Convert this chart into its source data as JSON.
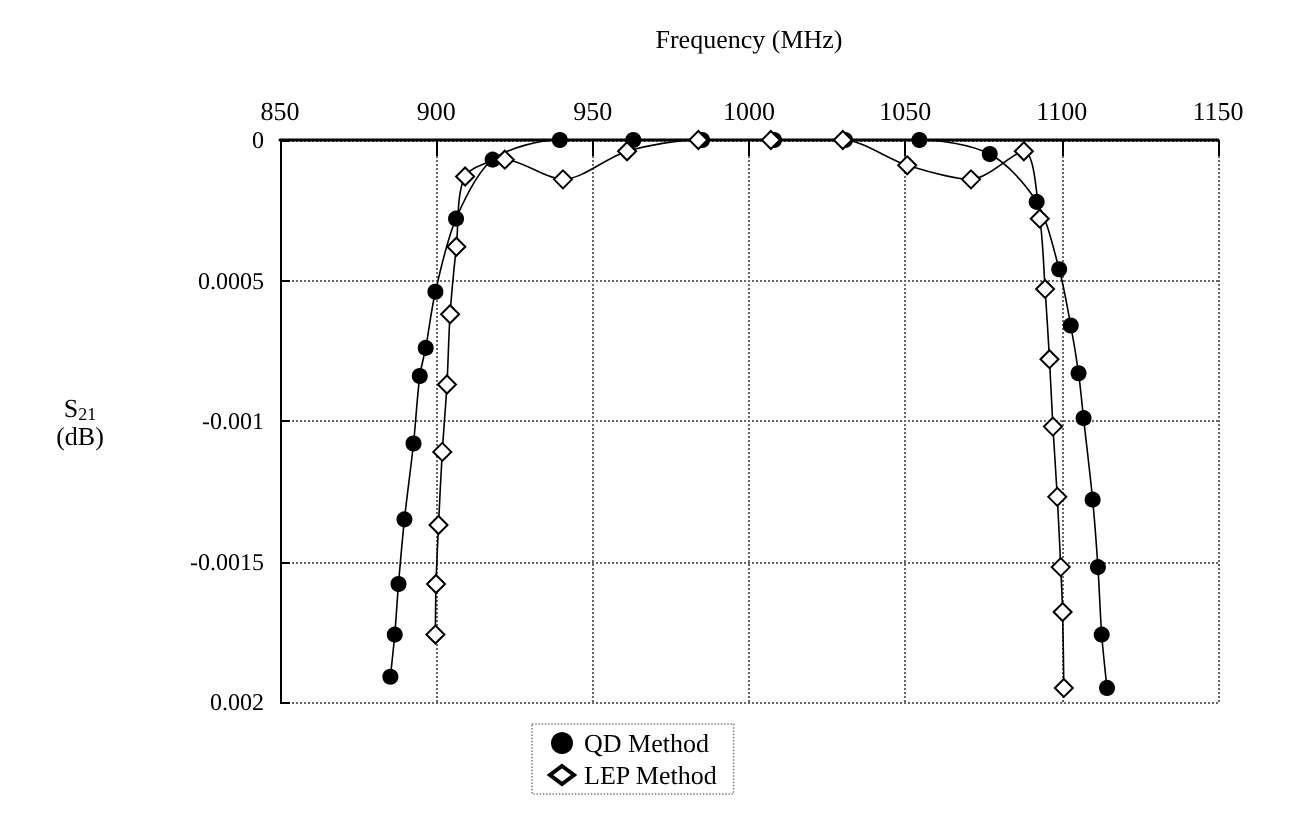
{
  "chart_data": {
    "type": "line",
    "xlabel": "Frequency (MHz)",
    "ylabel": "S$_{21}$ (dB)",
    "xlim": [
      850,
      1150
    ],
    "xticks": [
      850,
      900,
      950,
      1000,
      1050,
      1100,
      1150
    ],
    "ylim": [
      -0.002,
      0
    ],
    "yticks": [
      {
        "value": 0,
        "label": "0"
      },
      {
        "value": -0.0005,
        "label": "0.0005"
      },
      {
        "value": -0.001,
        "label": "-0.001"
      },
      {
        "value": -0.0015,
        "label": "-0.0015"
      },
      {
        "value": -0.002,
        "label": "0.002"
      }
    ],
    "grid": true,
    "legend": "bottom",
    "line_style": "solid",
    "series": [
      {
        "name": "QD Method",
        "color": "#000000",
        "marker": "circle",
        "x": [
          885.3,
          886.7,
          887.9,
          889.8,
          892.7,
          894.7,
          896.6,
          899.7,
          906.3,
          918,
          939.5,
          963,
          985,
          1008,
          1030.7,
          1054.5,
          1077,
          1092,
          1099.2,
          1102.9,
          1105.4,
          1107,
          1109.9,
          1111.6,
          1112.8,
          1114.5
        ],
        "values": [
          -0.00191,
          -0.00176,
          -0.00158,
          -0.00135,
          -0.00108,
          -0.00084,
          -0.00074,
          -0.00054,
          -0.00028,
          -7e-05,
          0,
          0,
          0,
          0,
          0,
          0,
          -5e-05,
          -0.00022,
          -0.00046,
          -0.00066,
          -0.00083,
          -0.00099,
          -0.00128,
          -0.00152,
          -0.00176,
          -0.00195
        ]
      },
      {
        "name": "LEP Method",
        "color": "#000000",
        "marker": "diamond",
        "x": [
          899.7,
          899.9,
          900.7,
          901.9,
          903.4,
          904.4,
          906.4,
          909.2,
          921.9,
          940.5,
          961,
          983.8,
          1007,
          1030,
          1050.6,
          1071,
          1087.9,
          1093,
          1094.7,
          1096.1,
          1097.2,
          1098.6,
          1099.7,
          1100.3,
          1100.7
        ],
        "values": [
          -0.00176,
          -0.00158,
          -0.00137,
          -0.00111,
          -0.00087,
          -0.00062,
          -0.00038,
          -0.00013,
          -7e-05,
          -0.00014,
          -4e-05,
          0,
          0,
          0,
          -9e-05,
          -0.00014,
          -4e-05,
          -0.00028,
          -0.00053,
          -0.00078,
          -0.00102,
          -0.00127,
          -0.00152,
          -0.00168,
          -0.00195
        ]
      }
    ]
  }
}
